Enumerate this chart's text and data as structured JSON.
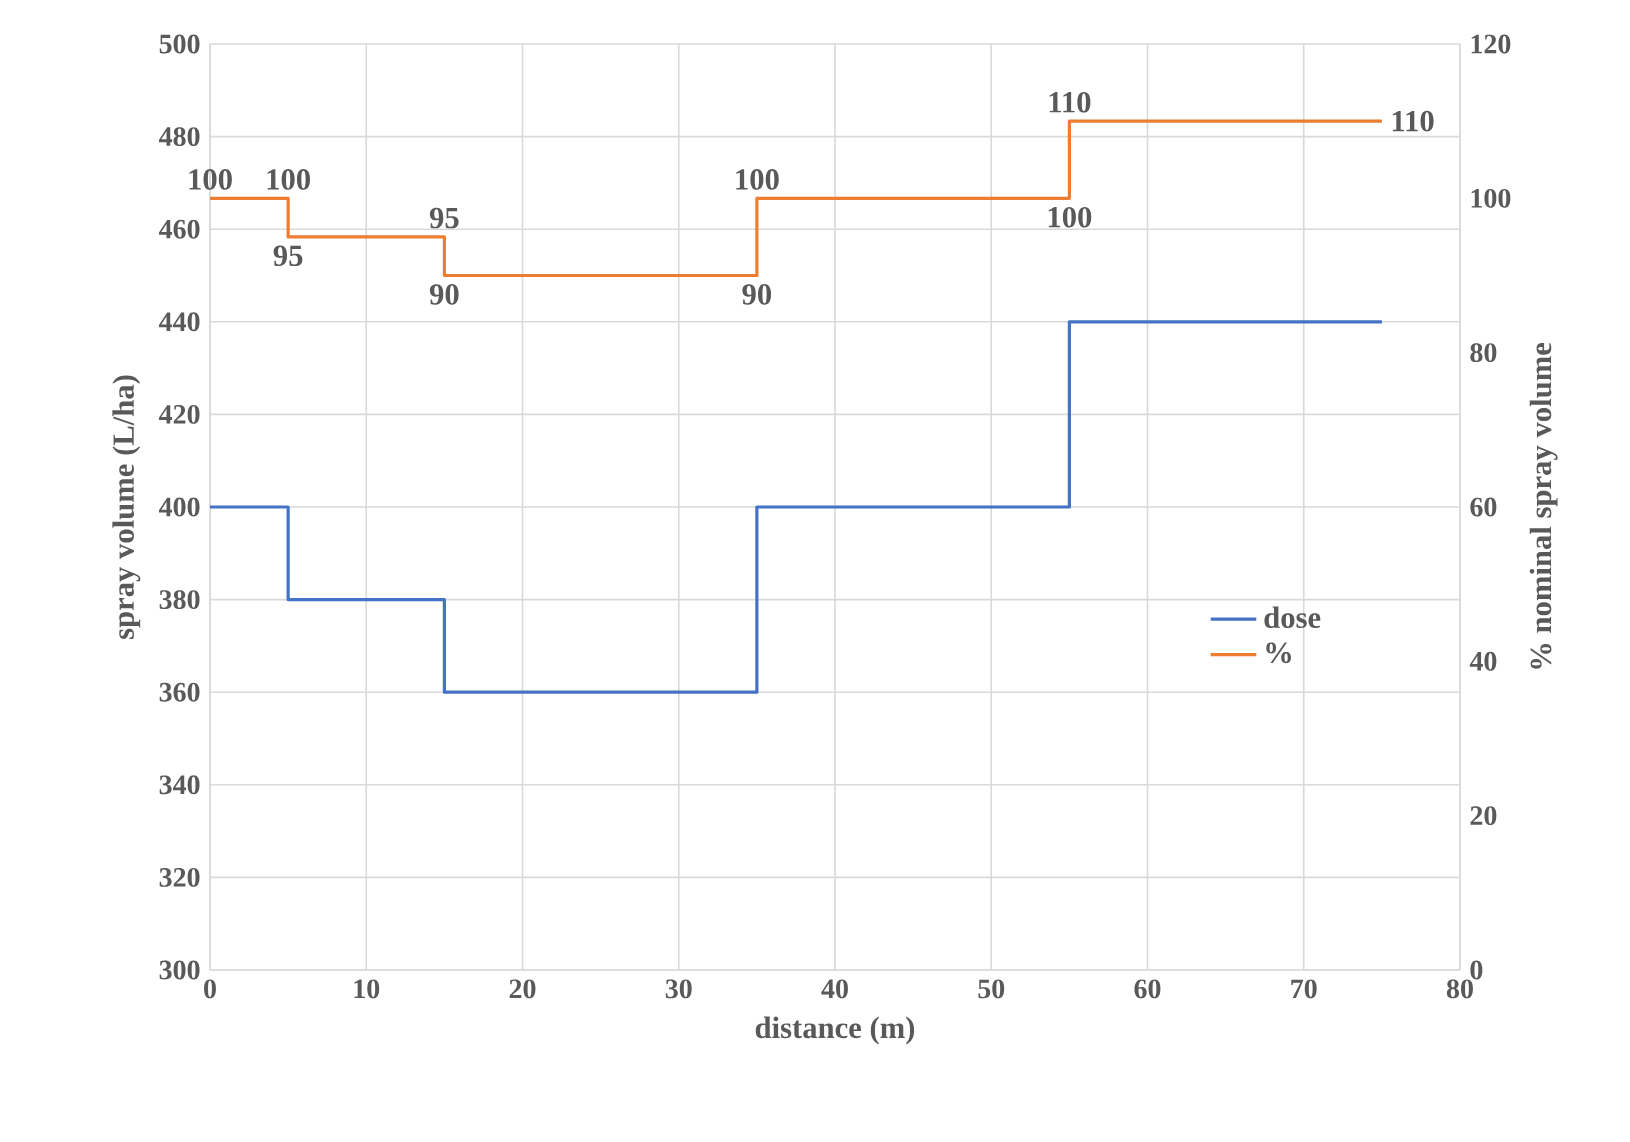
{
  "chart_data": {
    "type": "line",
    "xlabel": "distance (m)",
    "ylabel": "spray volume (L/ha)",
    "y2label": "% nominal spray volume",
    "xlim": [
      0,
      80
    ],
    "xticks": [
      0,
      10,
      20,
      30,
      40,
      50,
      60,
      70,
      80
    ],
    "ylim": [
      300,
      500
    ],
    "yticks": [
      300,
      320,
      340,
      360,
      380,
      400,
      420,
      440,
      460,
      480,
      500
    ],
    "y2lim": [
      0,
      120
    ],
    "y2ticks": [
      0,
      20,
      40,
      60,
      80,
      100,
      120
    ],
    "grid": true,
    "legend": "right",
    "series": [
      {
        "name": "dose",
        "color": "#4472c4",
        "x": [
          0,
          5,
          5,
          15,
          15,
          35,
          35,
          55,
          55,
          75
        ],
        "values": [
          400,
          400,
          380,
          380,
          360,
          360,
          400,
          400,
          440,
          440
        ]
      },
      {
        "name": "%",
        "color": "#ed7d31",
        "axis": "y2",
        "x": [
          0,
          5,
          5,
          15,
          15,
          35,
          35,
          55,
          55,
          75
        ],
        "values": [
          100,
          100,
          95,
          95,
          90,
          90,
          100,
          100,
          110,
          110
        ],
        "value_labels": [
          "100",
          "100",
          "95",
          "95",
          "90",
          "90",
          "100",
          "100",
          "110",
          "110"
        ]
      }
    ]
  }
}
